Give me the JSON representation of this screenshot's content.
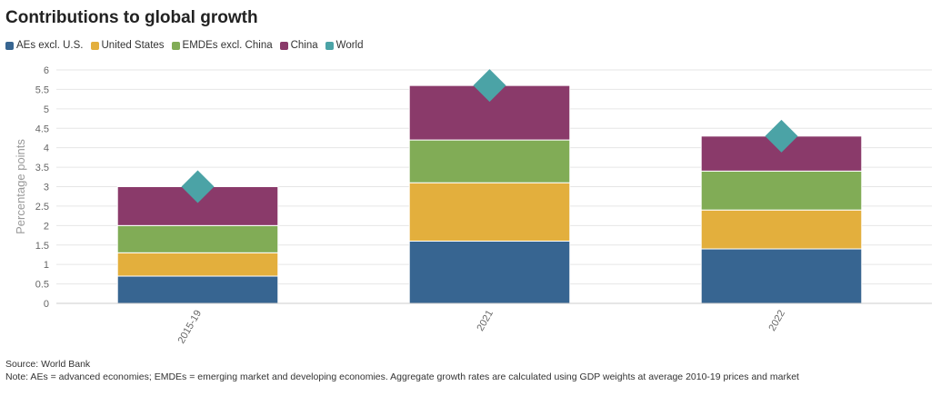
{
  "chart_data": {
    "type": "bar",
    "stacked": true,
    "title": "Contributions to global growth",
    "ylabel": "Percentage points",
    "xlabel": "",
    "ylim": [
      0,
      6
    ],
    "yticks": [
      "0",
      "0.5",
      "1",
      "1.5",
      "2",
      "2.5",
      "3",
      "3.5",
      "4",
      "4.5",
      "5",
      "5.5",
      "6"
    ],
    "categories": [
      "2015-19",
      "2021",
      "2022"
    ],
    "series": [
      {
        "name": "AEs excl. U.S.",
        "color": "#376591",
        "values": [
          0.7,
          1.6,
          1.4
        ]
      },
      {
        "name": "United States",
        "color": "#E3AF3D",
        "values": [
          0.6,
          1.5,
          1.0
        ]
      },
      {
        "name": "EMDEs excl. China",
        "color": "#81AC56",
        "values": [
          0.7,
          1.1,
          1.0
        ]
      },
      {
        "name": "China",
        "color": "#8A3A6A",
        "values": [
          1.0,
          1.4,
          0.9
        ]
      }
    ],
    "markers": {
      "name": "World",
      "color": "#4BA3A6",
      "shape": "diamond",
      "values": [
        3.0,
        5.6,
        4.3
      ]
    },
    "legend_position": "top-left"
  },
  "footer": {
    "source": "Source: World Bank",
    "note": "Note: AEs = advanced economies; EMDEs = emerging market and developing economies. Aggregate growth rates are calculated using GDP weights at average 2010-19 prices and market"
  }
}
